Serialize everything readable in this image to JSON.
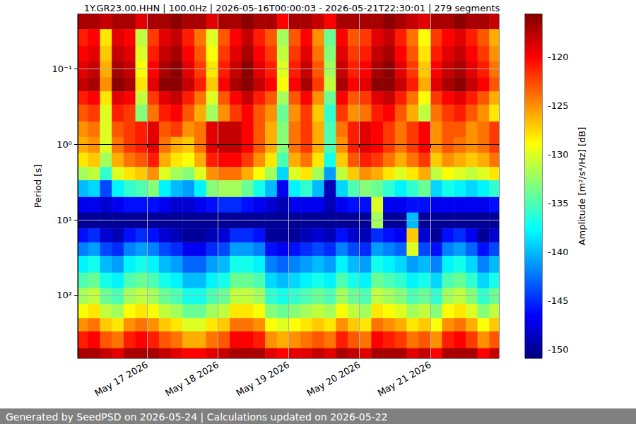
{
  "chart_data": {
    "type": "heatmap",
    "title": "1Y.GR23.00.HHN | 100.0Hz | 2026-05-16T00:00:03 - 2026-05-21T22:30:01 | 279 segments",
    "ylabel": "Period [s]",
    "footer": "Generated by SeedPSD on 2026-05-24 | Calculations updated on 2026-05-22",
    "log": "y",
    "grid": true,
    "xlim": [
      "2026-05-16T00:28",
      "2026-05-21T23:17"
    ],
    "xticks": [
      {
        "value": "2026-05-17T00:00",
        "label": "May 17 2026"
      },
      {
        "value": "2026-05-18T00:00",
        "label": "May 18 2026"
      },
      {
        "value": "2026-05-19T00:00",
        "label": "May 19 2026"
      },
      {
        "value": "2026-05-20T00:00",
        "label": "May 20 2026"
      },
      {
        "value": "2026-05-21T00:00",
        "label": "May 21 2026"
      }
    ],
    "ylim": [
      0.019,
      680
    ],
    "yticks": [
      {
        "value": 0.1,
        "label": "10⁻¹"
      },
      {
        "value": 1,
        "label": "10⁰"
      },
      {
        "value": 10,
        "label": "10¹"
      },
      {
        "value": 100,
        "label": "10²"
      }
    ],
    "x_edges": [
      "2026-05-16T00:00",
      "2026-05-16T04:00",
      "2026-05-16T08:00",
      "2026-05-16T12:00",
      "2026-05-16T16:00",
      "2026-05-16T20:00",
      "2026-05-17T00:00",
      "2026-05-17T04:00",
      "2026-05-17T08:00",
      "2026-05-17T12:00",
      "2026-05-17T16:00",
      "2026-05-17T20:00",
      "2026-05-18T00:00",
      "2026-05-18T04:00",
      "2026-05-18T08:00",
      "2026-05-18T12:00",
      "2026-05-18T16:00",
      "2026-05-18T20:00",
      "2026-05-19T00:00",
      "2026-05-19T04:00",
      "2026-05-19T08:00",
      "2026-05-19T12:00",
      "2026-05-19T16:00",
      "2026-05-19T20:00",
      "2026-05-20T00:00",
      "2026-05-20T04:00",
      "2026-05-20T08:00",
      "2026-05-20T12:00",
      "2026-05-20T16:00",
      "2026-05-20T20:00",
      "2026-05-21T00:00",
      "2026-05-21T04:00",
      "2026-05-21T08:00",
      "2026-05-21T12:00",
      "2026-05-21T16:00",
      "2026-05-21T20:00",
      "2026-05-22T00:00"
    ],
    "y_edges": [
      0.019,
      0.03,
      0.05,
      0.08,
      0.13,
      0.2,
      0.3,
      0.5,
      0.8,
      1.3,
      2,
      3,
      5,
      8,
      13,
      20,
      30,
      50,
      80,
      130,
      200,
      300,
      500,
      680
    ],
    "values": [
      [
        -117,
        -117,
        -118,
        -117,
        -117,
        -119,
        -117,
        -117,
        -116,
        -117,
        -117,
        -119,
        -117,
        -117,
        -116,
        -117,
        -117,
        -120,
        -117,
        -117,
        -118,
        -120,
        -117,
        -117,
        -117,
        -117,
        -116,
        -117,
        -118,
        -119,
        -117,
        -117,
        -116,
        -117,
        -117,
        -118
      ],
      [
        -121,
        -120,
        -128,
        -119,
        -120,
        -131,
        -122,
        -119,
        -118,
        -121,
        -124,
        -130,
        -123,
        -120,
        -118,
        -121,
        -123,
        -132,
        -123,
        -120,
        -125,
        -134,
        -120,
        -123,
        -122,
        -119,
        -118,
        -121,
        -124,
        -129,
        -122,
        -120,
        -119,
        -121,
        -123,
        -126
      ],
      [
        -120,
        -119,
        -127,
        -118,
        -119,
        -130,
        -121,
        -118,
        -117,
        -120,
        -123,
        -129,
        -122,
        -119,
        -117,
        -120,
        -122,
        -131,
        -122,
        -119,
        -124,
        -133,
        -119,
        -122,
        -121,
        -118,
        -117,
        -120,
        -123,
        -128,
        -121,
        -119,
        -118,
        -120,
        -122,
        -125
      ],
      [
        -119,
        -118,
        -126,
        -117,
        -118,
        -129,
        -120,
        -117,
        -116,
        -119,
        -122,
        -128,
        -121,
        -118,
        -116,
        -119,
        -121,
        -130,
        -121,
        -118,
        -123,
        -132,
        -118,
        -121,
        -120,
        -117,
        -116,
        -119,
        -122,
        -127,
        -120,
        -118,
        -117,
        -119,
        -121,
        -124
      ],
      [
        -118,
        -117,
        -125,
        -116,
        -117,
        -128,
        -119,
        -116,
        -116,
        -118,
        -121,
        -127,
        -120,
        -117,
        -116,
        -118,
        -120,
        -129,
        -120,
        -117,
        -122,
        -131,
        -117,
        -120,
        -119,
        -116,
        -116,
        -118,
        -121,
        -126,
        -119,
        -117,
        -116,
        -118,
        -120,
        -123
      ],
      [
        -121,
        -120,
        -128,
        -119,
        -120,
        -131,
        -122,
        -119,
        -118,
        -121,
        -124,
        -130,
        -123,
        -120,
        -118,
        -121,
        -123,
        -132,
        -123,
        -120,
        -125,
        -134,
        -120,
        -123,
        -122,
        -119,
        -118,
        -121,
        -124,
        -129,
        -122,
        -120,
        -119,
        -121,
        -123,
        -126
      ],
      [
        -123,
        -122,
        -130,
        -121,
        -122,
        -133,
        -124,
        -121,
        -120,
        -123,
        -126,
        -132,
        -125,
        -122,
        -120,
        -123,
        -125,
        -134,
        -125,
        -122,
        -127,
        -136,
        -122,
        -125,
        -124,
        -121,
        -120,
        -123,
        -126,
        -131,
        -124,
        -122,
        -121,
        -123,
        -125,
        -128
      ],
      [
        -125,
        -124,
        -130,
        -123,
        -122,
        -121,
        -119,
        -123,
        -122,
        -125,
        -124,
        -119,
        -118,
        -118,
        -120,
        -123,
        -126,
        -133,
        -124,
        -122,
        -126,
        -135,
        -124,
        -121,
        -119,
        -120,
        -122,
        -124,
        -122,
        -120,
        -125,
        -123,
        -123,
        -125,
        -124,
        -122
      ],
      [
        -126,
        -125,
        -130,
        -124,
        -122,
        -121,
        -119,
        -124,
        -126,
        -127,
        -124,
        -119,
        -118,
        -118,
        -120,
        -123,
        -126,
        -133,
        -124,
        -122,
        -126,
        -135,
        -125,
        -121,
        -119,
        -120,
        -122,
        -124,
        -122,
        -120,
        -125,
        -123,
        -124,
        -125,
        -124,
        -122
      ],
      [
        -128,
        -127,
        -132,
        -126,
        -124,
        -123,
        -121,
        -126,
        -128,
        -129,
        -126,
        -121,
        -120,
        -120,
        -122,
        -125,
        -128,
        -135,
        -126,
        -124,
        -128,
        -137,
        -127,
        -123,
        -121,
        -122,
        -124,
        -126,
        -124,
        -122,
        -127,
        -125,
        -126,
        -127,
        -126,
        -124
      ],
      [
        -132,
        -131,
        -136,
        -130,
        -128,
        -127,
        -125,
        -130,
        -132,
        -133,
        -130,
        -125,
        -124,
        -124,
        -126,
        -129,
        -132,
        -139,
        -130,
        -128,
        -132,
        -141,
        -131,
        -127,
        -125,
        -126,
        -128,
        -130,
        -128,
        -126,
        -131,
        -129,
        -130,
        -131,
        -130,
        -128
      ],
      [
        -140,
        -139,
        -144,
        -138,
        -136,
        -135,
        -133,
        -138,
        -140,
        -141,
        -138,
        -133,
        -132,
        -132,
        -134,
        -137,
        -140,
        -147,
        -138,
        -136,
        -140,
        -149,
        -139,
        -135,
        -133,
        -134,
        -136,
        -138,
        -136,
        -134,
        -139,
        -137,
        -138,
        -139,
        -138,
        -136
      ],
      [
        -147,
        -147,
        -148,
        -147,
        -146,
        -146,
        -146,
        -147,
        -148,
        -148,
        -147,
        -146,
        -145,
        -145,
        -146,
        -147,
        -148,
        -149,
        -147,
        -147,
        -147,
        -149,
        -147,
        -146,
        -146,
        -130,
        -147,
        -147,
        -146,
        -146,
        -147,
        -147,
        -147,
        -147,
        -147,
        -146
      ],
      [
        -150,
        -150,
        -150,
        -150,
        -150,
        -150,
        -150,
        -150,
        -150,
        -150,
        -150,
        -150,
        -150,
        -150,
        -150,
        -150,
        -150,
        -150,
        -150,
        -150,
        -150,
        -150,
        -150,
        -150,
        -150,
        -132,
        -150,
        -150,
        -140,
        -150,
        -150,
        -150,
        -150,
        -150,
        -150,
        -150
      ],
      [
        -146,
        -145,
        -148,
        -149,
        -146,
        -145,
        -146,
        -148,
        -149,
        -150,
        -150,
        -149,
        -148,
        -145,
        -145,
        -146,
        -150,
        -150,
        -150,
        -149,
        -148,
        -149,
        -146,
        -148,
        -149,
        -145,
        -146,
        -147,
        -127,
        -148,
        -150,
        -146,
        -145,
        -147,
        -150,
        -148
      ],
      [
        -142,
        -141,
        -144,
        -145,
        -142,
        -141,
        -142,
        -144,
        -145,
        -147,
        -147,
        -145,
        -144,
        -141,
        -141,
        -142,
        -146,
        -147,
        -146,
        -145,
        -144,
        -145,
        -142,
        -144,
        -145,
        -141,
        -142,
        -143,
        -130,
        -144,
        -146,
        -142,
        -141,
        -143,
        -146,
        -144
      ],
      [
        -138,
        -137,
        -140,
        -141,
        -138,
        -137,
        -138,
        -140,
        -141,
        -143,
        -143,
        -141,
        -140,
        -137,
        -137,
        -138,
        -142,
        -143,
        -142,
        -141,
        -140,
        -141,
        -138,
        -140,
        -141,
        -137,
        -138,
        -139,
        -141,
        -140,
        -142,
        -138,
        -137,
        -139,
        -142,
        -140
      ],
      [
        -135,
        -134,
        -137,
        -138,
        -135,
        -134,
        -135,
        -137,
        -138,
        -140,
        -140,
        -138,
        -137,
        -134,
        -134,
        -135,
        -139,
        -140,
        -139,
        -138,
        -137,
        -138,
        -135,
        -137,
        -138,
        -134,
        -135,
        -136,
        -138,
        -137,
        -139,
        -135,
        -134,
        -136,
        -139,
        -137
      ],
      [
        -132,
        -131,
        -134,
        -135,
        -132,
        -131,
        -132,
        -134,
        -135,
        -137,
        -137,
        -135,
        -134,
        -131,
        -131,
        -132,
        -136,
        -137,
        -136,
        -135,
        -134,
        -135,
        -132,
        -134,
        -135,
        -131,
        -132,
        -133,
        -135,
        -134,
        -136,
        -132,
        -131,
        -133,
        -136,
        -134
      ],
      [
        -129,
        -128,
        -131,
        -132,
        -129,
        -128,
        -129,
        -131,
        -132,
        -134,
        -134,
        -132,
        -131,
        -128,
        -128,
        -129,
        -133,
        -134,
        -133,
        -132,
        -131,
        -132,
        -129,
        -131,
        -132,
        -128,
        -129,
        -130,
        -132,
        -131,
        -133,
        -129,
        -128,
        -130,
        -133,
        -131
      ],
      [
        -125,
        -124,
        -127,
        -128,
        -125,
        -124,
        -125,
        -127,
        -128,
        -130,
        -130,
        -128,
        -127,
        -124,
        -124,
        -125,
        -129,
        -130,
        -129,
        -128,
        -127,
        -128,
        -125,
        -127,
        -128,
        -124,
        -125,
        -126,
        -128,
        -127,
        -129,
        -125,
        -124,
        -126,
        -129,
        -127
      ],
      [
        -121,
        -120,
        -123,
        -124,
        -121,
        -120,
        -121,
        -123,
        -124,
        -126,
        -126,
        -124,
        -123,
        -120,
        -120,
        -121,
        -125,
        -126,
        -125,
        -124,
        -123,
        -124,
        -121,
        -123,
        -124,
        -120,
        -121,
        -122,
        -124,
        -123,
        -125,
        -121,
        -120,
        -122,
        -125,
        -123
      ],
      [
        -117,
        -117,
        -118,
        -119,
        -117,
        -117,
        -117,
        -118,
        -119,
        -120,
        -120,
        -119,
        -118,
        -117,
        -117,
        -117,
        -119,
        -120,
        -119,
        -119,
        -118,
        -119,
        -117,
        -118,
        -119,
        -117,
        -117,
        -117,
        -119,
        -118,
        -120,
        -117,
        -117,
        -117,
        -120,
        -118
      ]
    ],
    "colorbar": {
      "label": "Amplitude [m²/s⁴/Hz] [dB]",
      "lim": [
        -150.9,
        -115.6
      ],
      "ticks": [
        -150,
        -145,
        -140,
        -135,
        -130,
        -125,
        -120
      ]
    }
  }
}
